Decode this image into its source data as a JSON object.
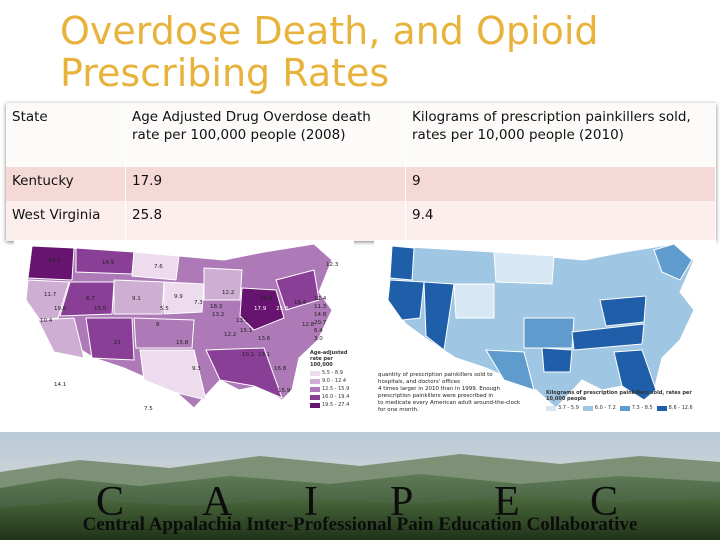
{
  "title": "Overdose Death, and Opioid Prescribing Rates",
  "table": {
    "headers": [
      "State",
      "Age Adjusted Drug Overdose death rate per 100,000  people (2008)",
      "Kilograms of prescription painkillers sold, rates per 10,000 people (2010)"
    ],
    "rows": [
      {
        "state": "Kentucky",
        "overdose": "17.9",
        "painkillers": "9"
      },
      {
        "state": "West Virginia",
        "overdose": "25.8",
        "painkillers": "9.4"
      }
    ]
  },
  "left_map": {
    "state_values": [
      "14.7",
      "14.9",
      "7.6",
      "12.3",
      "11.7",
      "6.7",
      "9.1",
      "9.9",
      "19.8",
      "15.0",
      "19.9",
      "16.4",
      "5.5",
      "12.2",
      "7.3",
      "10.4",
      "13.1",
      "13.2",
      "18.3",
      "17.9",
      "25.8",
      "8",
      "12.8",
      "15.8",
      "12.2",
      "13.6",
      "21",
      "15.1",
      "10.1",
      "13.1",
      "9.3",
      "16.8",
      "14.1",
      "7.5",
      "15.9",
      "12.4",
      "11.3",
      "14.8",
      "20.7",
      "6.4",
      "3.0"
    ],
    "legend_title": "Age-adjusted rate per 100,000",
    "legend_items": [
      "5.5 - 8.9",
      "9.0 - 12.4",
      "12.5 - 15.9",
      "16.0 - 19.4",
      "19.5 - 27.4"
    ],
    "legend_colors": [
      "#ecdcee",
      "#cfaed3",
      "#ae79b7",
      "#8a3f96",
      "#66146f"
    ]
  },
  "right_map": {
    "legend_title": "Kilograms of prescription painkillers sold, rates per 10,000 people",
    "legend_items": [
      "3.7 - 5.9",
      "6.0 - 7.2",
      "7.3 - 8.5",
      "8.6 - 12.6"
    ],
    "legend_colors": [
      "#d7e8f4",
      "#9fc6e2",
      "#5f9bcc",
      "#1f5ea8"
    ],
    "caption_lines": [
      "quantity of prescription painkillers sold to",
      "hospitals, and doctors' offices",
      "4 times larger in 2010 than in 1999. Enough prescription painkillers were prescribed in",
      "to medicate every American adult around-the-clock for one month."
    ]
  },
  "footer": {
    "acronym": [
      "C",
      "A",
      "I",
      "P",
      "E",
      "C"
    ],
    "full_name": "Central Appalachia Inter-Professional Pain Education Collaborative"
  },
  "colors": {
    "title": "#e8b33d",
    "header_row": "#fdfbf9",
    "row1": "#f5d9d6",
    "row2": "#fbeeec"
  }
}
